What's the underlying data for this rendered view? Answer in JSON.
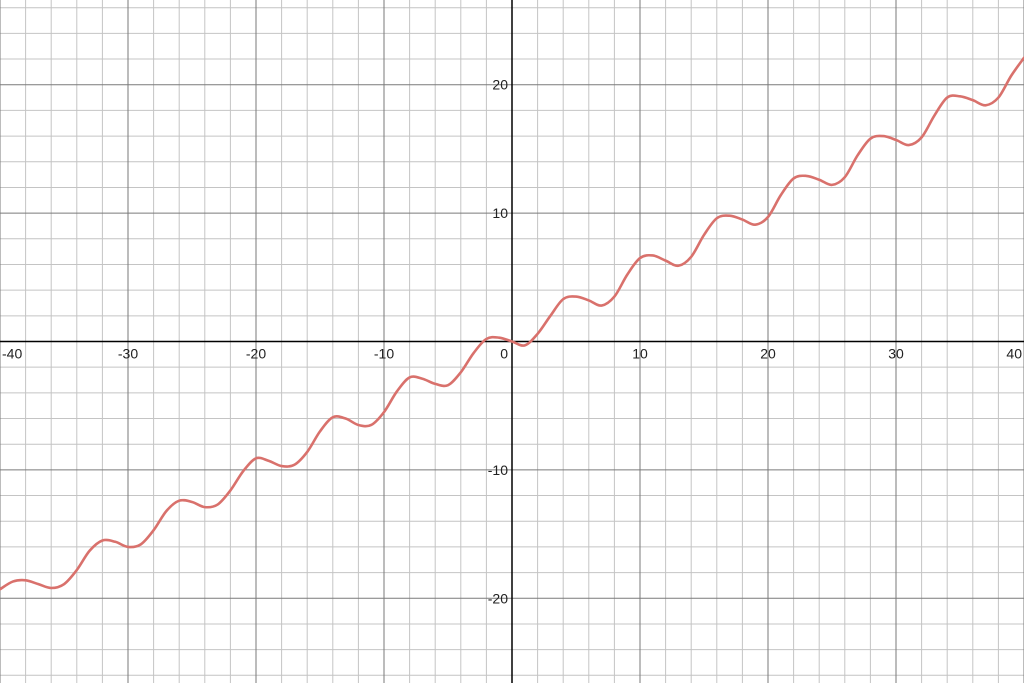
{
  "chart_data": {
    "type": "line",
    "title": "",
    "xlabel": "",
    "ylabel": "",
    "xlim": [
      -40,
      40
    ],
    "ylim": [
      -26.6,
      26.6
    ],
    "grid": true,
    "minor_grid_step": 2,
    "major_grid_step": 10,
    "x_ticks": [
      -40,
      -30,
      -20,
      -10,
      10,
      20,
      30,
      40
    ],
    "y_ticks": [
      -20,
      -10,
      10,
      20
    ],
    "x_tick_labels": [
      "-40",
      "-30",
      "-20",
      "-10",
      "10",
      "20",
      "30",
      "40"
    ],
    "y_tick_labels": [
      "-20",
      "-10",
      "10",
      "20"
    ],
    "origin_label": "0",
    "series": [
      {
        "color": "#d9716c",
        "x": [
          -40,
          -39,
          -38,
          -37,
          -36,
          -35,
          -34,
          -33,
          -32,
          -31,
          -30,
          -29,
          -28,
          -27,
          -26,
          -25,
          -24,
          -23,
          -22,
          -21,
          -20,
          -19,
          -18,
          -17,
          -16,
          -15,
          -14,
          -13,
          -12,
          -11,
          -10,
          -9,
          -8,
          -7,
          -6,
          -5,
          -4,
          -3,
          -2,
          -1,
          0,
          1,
          2,
          3,
          4,
          5,
          6,
          7,
          8,
          9,
          10,
          11,
          12,
          13,
          14,
          15,
          16,
          17,
          18,
          19,
          20,
          21,
          22,
          23,
          24,
          25,
          26,
          27,
          28,
          29,
          30,
          31,
          32,
          33,
          34,
          35,
          36,
          37,
          38,
          39,
          40
        ],
        "y": [
          -19.3,
          -18.7,
          -18.6,
          -18.9,
          -19.2,
          -18.9,
          -17.8,
          -16.3,
          -15.5,
          -15.6,
          -16.0,
          -15.8,
          -14.7,
          -13.2,
          -12.4,
          -12.5,
          -12.9,
          -12.7,
          -11.6,
          -10.1,
          -9.1,
          -9.3,
          -9.7,
          -9.6,
          -8.6,
          -7.0,
          -5.9,
          -6.0,
          -6.5,
          -6.5,
          -5.5,
          -3.9,
          -2.8,
          -2.9,
          -3.3,
          -3.4,
          -2.4,
          -0.9,
          0.2,
          0.3,
          0.0,
          -0.3,
          0.6,
          2.0,
          3.3,
          3.5,
          3.2,
          2.8,
          3.5,
          5.2,
          6.5,
          6.7,
          6.3,
          5.9,
          6.6,
          8.3,
          9.6,
          9.8,
          9.5,
          9.1,
          9.7,
          11.4,
          12.7,
          12.9,
          12.6,
          12.2,
          12.8,
          14.5,
          15.8,
          16.0,
          15.7,
          15.3,
          15.9,
          17.6,
          19.0,
          19.1,
          18.8,
          18.4,
          19.0,
          20.7,
          22.1
        ]
      }
    ]
  }
}
